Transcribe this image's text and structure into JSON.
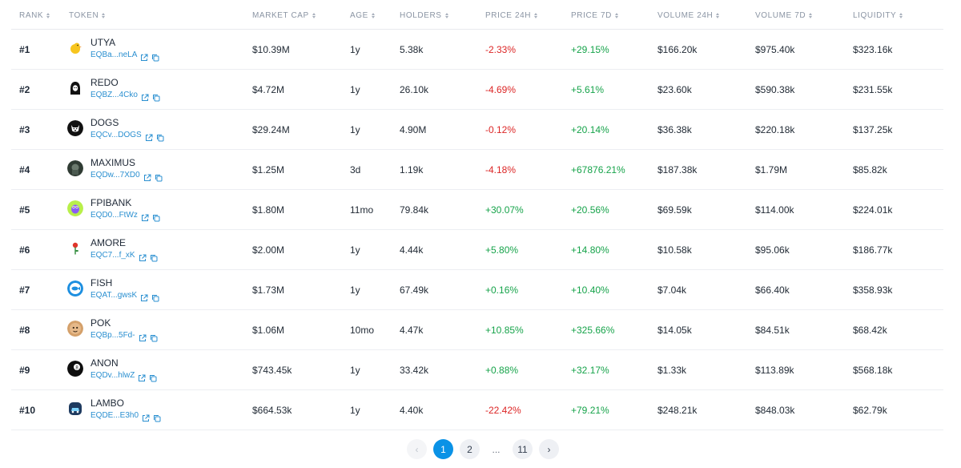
{
  "columns": {
    "rank": "RANK",
    "token": "TOKEN",
    "market_cap": "MARKET CAP",
    "age": "AGE",
    "holders": "HOLDERS",
    "price_24h": "PRICE 24H",
    "price_7d": "PRICE 7D",
    "volume_24h": "VOLUME 24H",
    "volume_7d": "VOLUME 7D",
    "liquidity": "LIQUIDITY"
  },
  "rows": [
    {
      "rank": "#1",
      "name": "UTYA",
      "address": "EQBa...neLA",
      "market_cap": "$10.39M",
      "age": "1y",
      "holders": "5.38k",
      "price_24h": "-2.33%",
      "price_7d": "+29.15%",
      "volume_24h": "$166.20k",
      "volume_7d": "$975.40k",
      "liquidity": "$323.16k",
      "icon": "duck-icon",
      "color": "#f5c518"
    },
    {
      "rank": "#2",
      "name": "REDO",
      "address": "EQBZ...4Cko",
      "market_cap": "$4.72M",
      "age": "1y",
      "holders": "26.10k",
      "price_24h": "-4.69%",
      "price_7d": "+5.61%",
      "volume_24h": "$23.60k",
      "volume_7d": "$590.38k",
      "liquidity": "$231.55k",
      "icon": "hooded-figure-icon",
      "color": "#111111"
    },
    {
      "rank": "#3",
      "name": "DOGS",
      "address": "EQCv...DOGS",
      "market_cap": "$29.24M",
      "age": "1y",
      "holders": "4.90M",
      "price_24h": "-0.12%",
      "price_7d": "+20.14%",
      "volume_24h": "$36.38k",
      "volume_7d": "$220.18k",
      "liquidity": "$137.25k",
      "icon": "dog-face-icon",
      "color": "#111111"
    },
    {
      "rank": "#4",
      "name": "MAXIMUS",
      "address": "EQDw...7XD0",
      "market_cap": "$1.25M",
      "age": "3d",
      "holders": "1.19k",
      "price_24h": "-4.18%",
      "price_7d": "+67876.21%",
      "volume_24h": "$187.38k",
      "volume_7d": "$1.79M",
      "liquidity": "$85.82k",
      "icon": "warrior-icon",
      "color": "#3b4a3f"
    },
    {
      "rank": "#5",
      "name": "FPIBANK",
      "address": "EQD0...FtWz",
      "market_cap": "$1.80M",
      "age": "11mo",
      "holders": "79.84k",
      "price_24h": "+30.07%",
      "price_7d": "+20.56%",
      "volume_24h": "$69.59k",
      "volume_7d": "$114.00k",
      "liquidity": "$224.01k",
      "icon": "frog-icon",
      "color": "#a3e635"
    },
    {
      "rank": "#6",
      "name": "AMORE",
      "address": "EQC7...f_xK",
      "market_cap": "$2.00M",
      "age": "1y",
      "holders": "4.44k",
      "price_24h": "+5.80%",
      "price_7d": "+14.80%",
      "volume_24h": "$10.58k",
      "volume_7d": "$95.06k",
      "liquidity": "$186.77k",
      "icon": "rose-icon",
      "color": "#ffffff"
    },
    {
      "rank": "#7",
      "name": "FISH",
      "address": "EQAT...gwsK",
      "market_cap": "$1.73M",
      "age": "1y",
      "holders": "67.49k",
      "price_24h": "+0.16%",
      "price_7d": "+10.40%",
      "volume_24h": "$7.04k",
      "volume_7d": "$66.40k",
      "liquidity": "$358.93k",
      "icon": "fish-icon",
      "color": "#1d8fe0"
    },
    {
      "rank": "#8",
      "name": "POK",
      "address": "EQBp...5Fd-",
      "market_cap": "$1.06M",
      "age": "10mo",
      "holders": "4.47k",
      "price_24h": "+10.85%",
      "price_7d": "+325.66%",
      "volume_24h": "$14.05k",
      "volume_7d": "$84.51k",
      "liquidity": "$68.42k",
      "icon": "face-icon",
      "color": "#c08a52"
    },
    {
      "rank": "#9",
      "name": "ANON",
      "address": "EQDv...hlwZ",
      "market_cap": "$743.45k",
      "age": "1y",
      "holders": "33.42k",
      "price_24h": "+0.88%",
      "price_7d": "+32.17%",
      "volume_24h": "$1.33k",
      "volume_7d": "$113.89k",
      "liquidity": "$568.18k",
      "icon": "eight-ball-icon",
      "color": "#111111"
    },
    {
      "rank": "#10",
      "name": "LAMBO",
      "address": "EQDE...E3h0",
      "market_cap": "$664.53k",
      "age": "1y",
      "holders": "4.40k",
      "price_24h": "-22.42%",
      "price_7d": "+79.21%",
      "volume_24h": "$248.21k",
      "volume_7d": "$848.03k",
      "liquidity": "$62.79k",
      "icon": "car-icon",
      "color": "#1e3a5f"
    }
  ],
  "pagination": {
    "prev": "‹",
    "pages": [
      "1",
      "2"
    ],
    "ellipsis": "...",
    "last": "11",
    "next": "›",
    "current": "1"
  }
}
